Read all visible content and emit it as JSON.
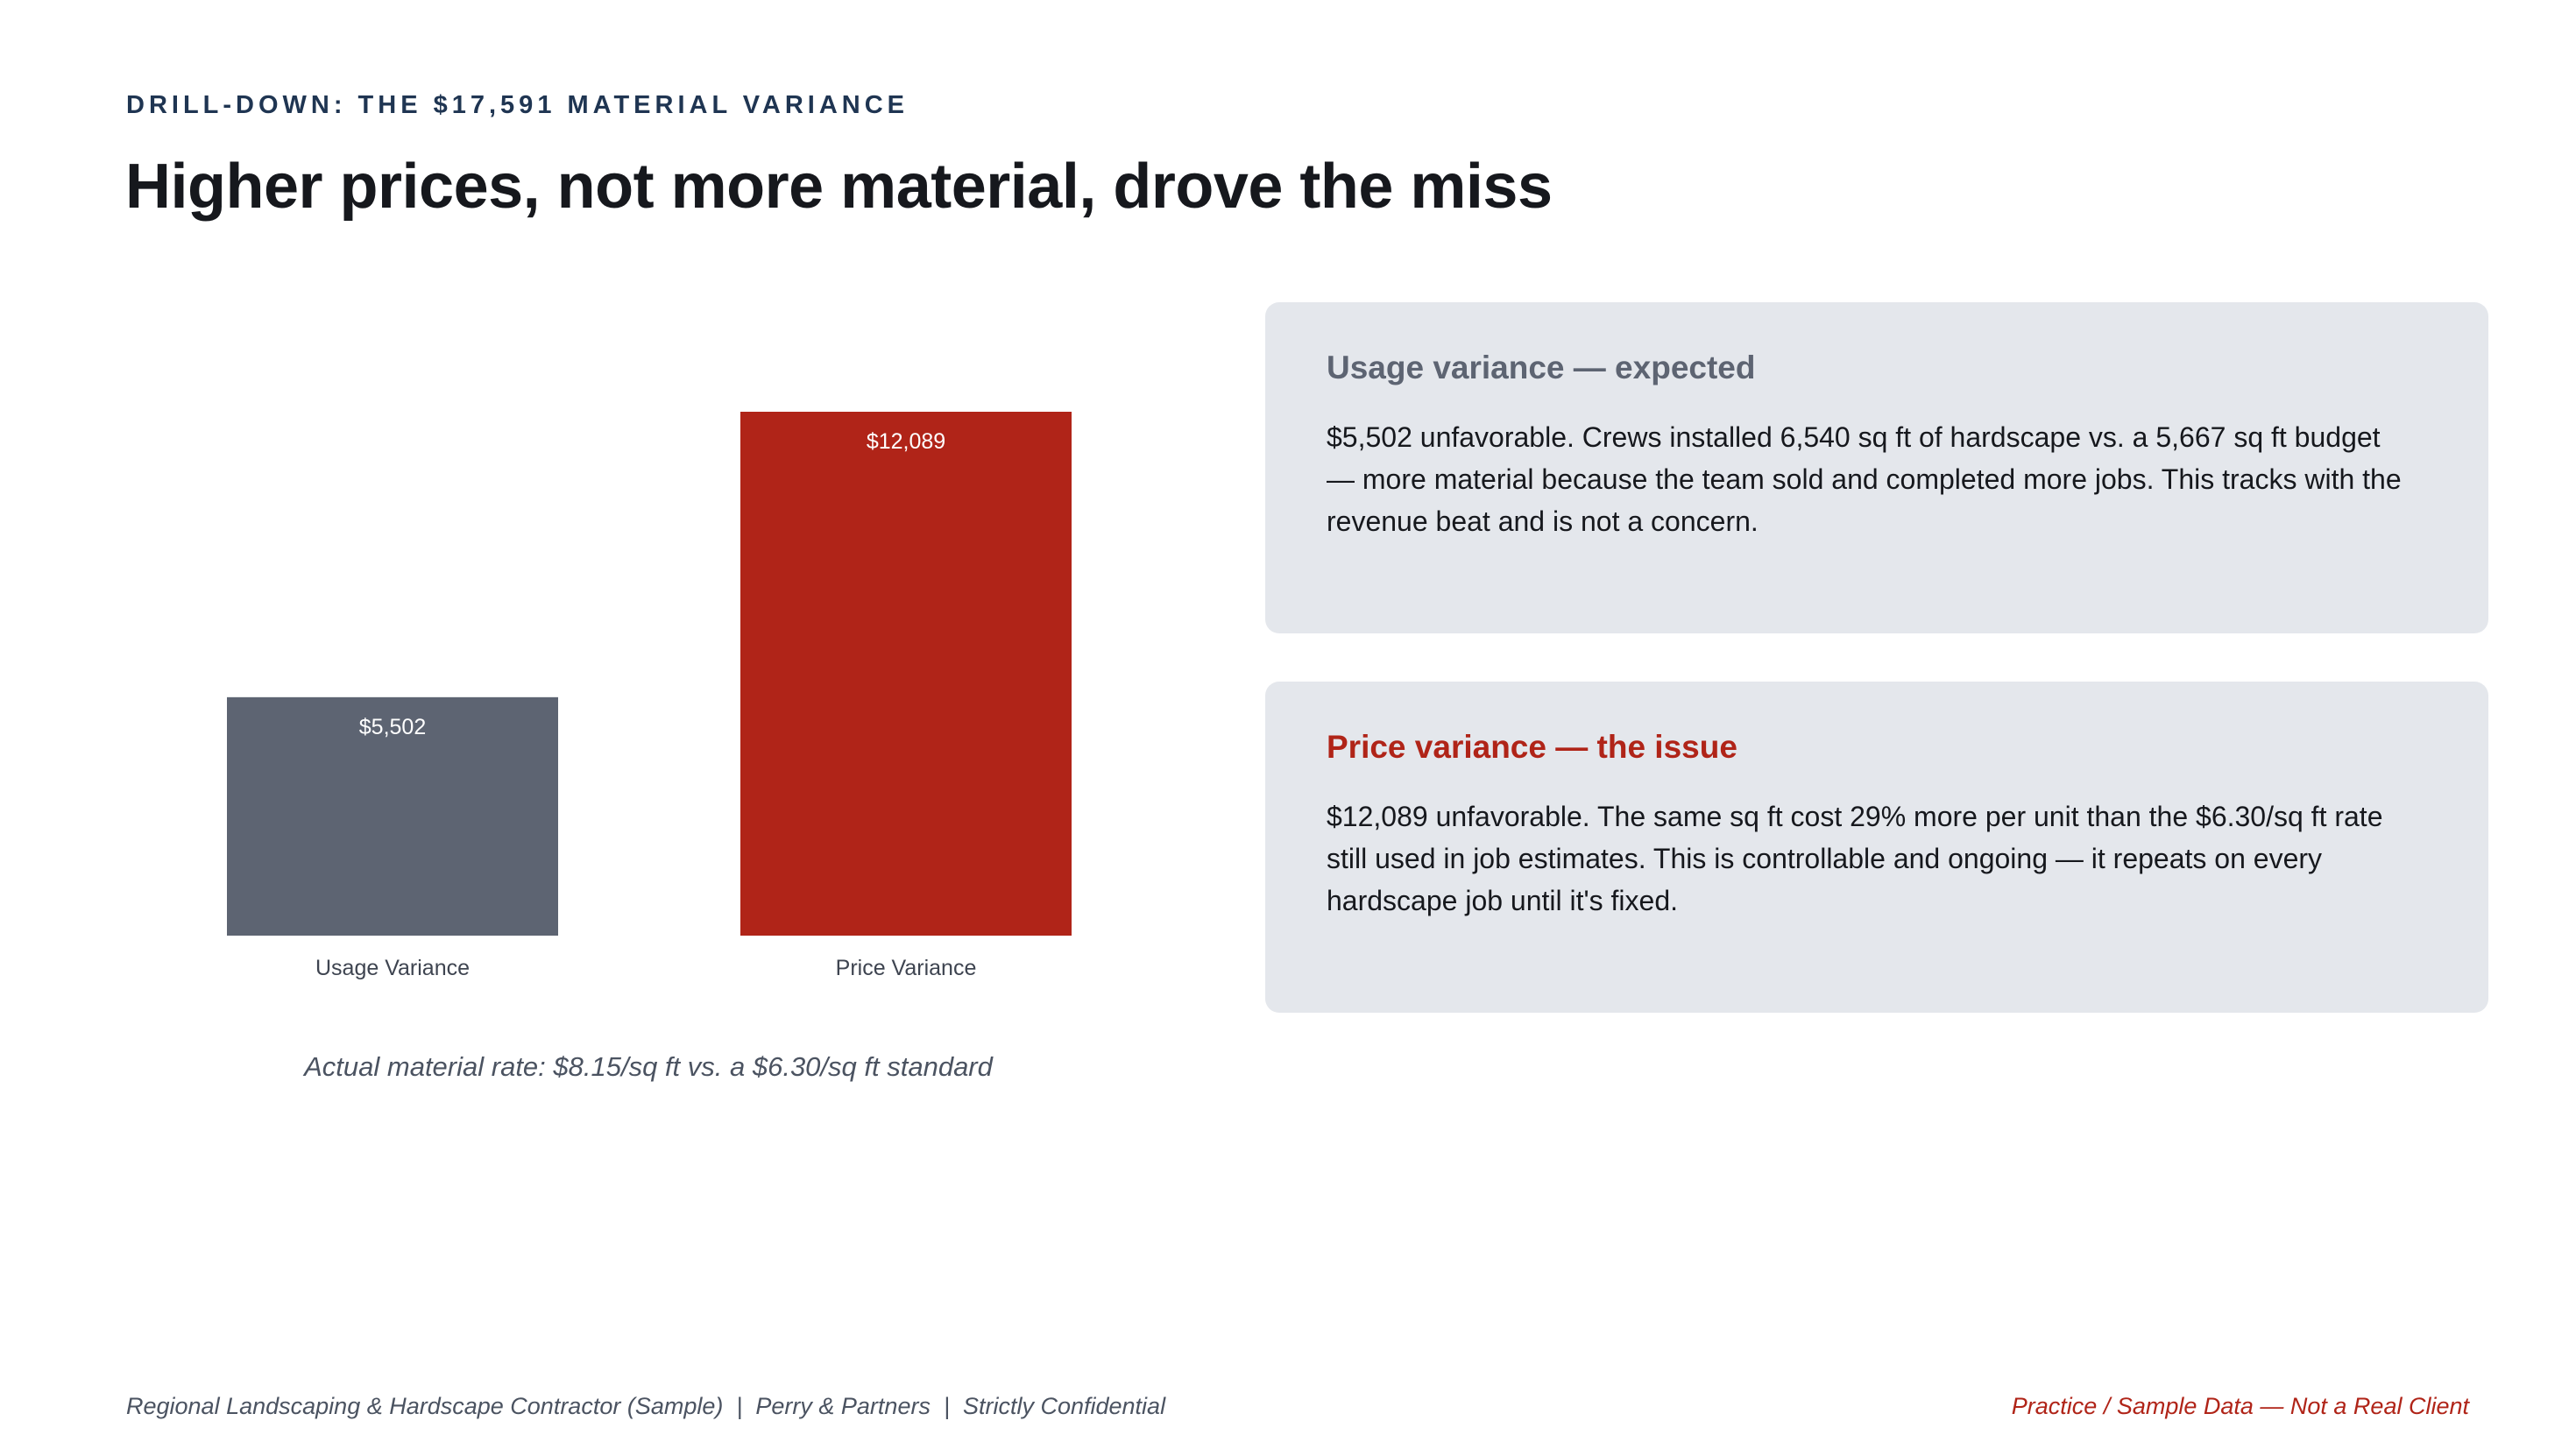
{
  "header": {
    "eyebrow": "DRILL-DOWN: THE $17,591 MATERIAL VARIANCE",
    "title": "Higher prices, not more material, drove the miss"
  },
  "chart_data": {
    "type": "bar",
    "categories": [
      "Usage Variance",
      "Price Variance"
    ],
    "values": [
      5502,
      12089
    ],
    "data_labels": [
      "$5,502",
      "$12,089"
    ],
    "colors": [
      "#5d6472",
      "#b02418"
    ],
    "ylim": [
      0,
      12089
    ],
    "grid": false,
    "title": "",
    "xlabel": "",
    "ylabel": "",
    "note": "Actual material rate: $8.15/sq ft vs. a $6.30/sq ft standard"
  },
  "cards": {
    "usage": {
      "title": "Usage variance — expected",
      "body": "$5,502 unfavorable. Crews installed 6,540 sq ft of hardscape vs. a 5,667 sq ft budget — more material because the team sold and completed more jobs. This tracks with the revenue beat and is not a concern."
    },
    "price": {
      "title": "Price variance — the issue",
      "body": "$12,089 unfavorable. The same sq ft cost 29% more per unit than the $6.30/sq ft rate still used in job estimates. This is controllable and ongoing — it repeats on every hardscape job until it's fixed."
    }
  },
  "footer": {
    "left": "Regional Landscaping & Hardscape Contractor (Sample)  |  Perry & Partners  |  Strictly Confidential",
    "right": "Practice / Sample Data — Not a Real Client"
  },
  "colors": {
    "accent_red": "#b02418",
    "slate": "#5d6472",
    "navy": "#1f3552",
    "card_bg": "#e4e7ec"
  }
}
